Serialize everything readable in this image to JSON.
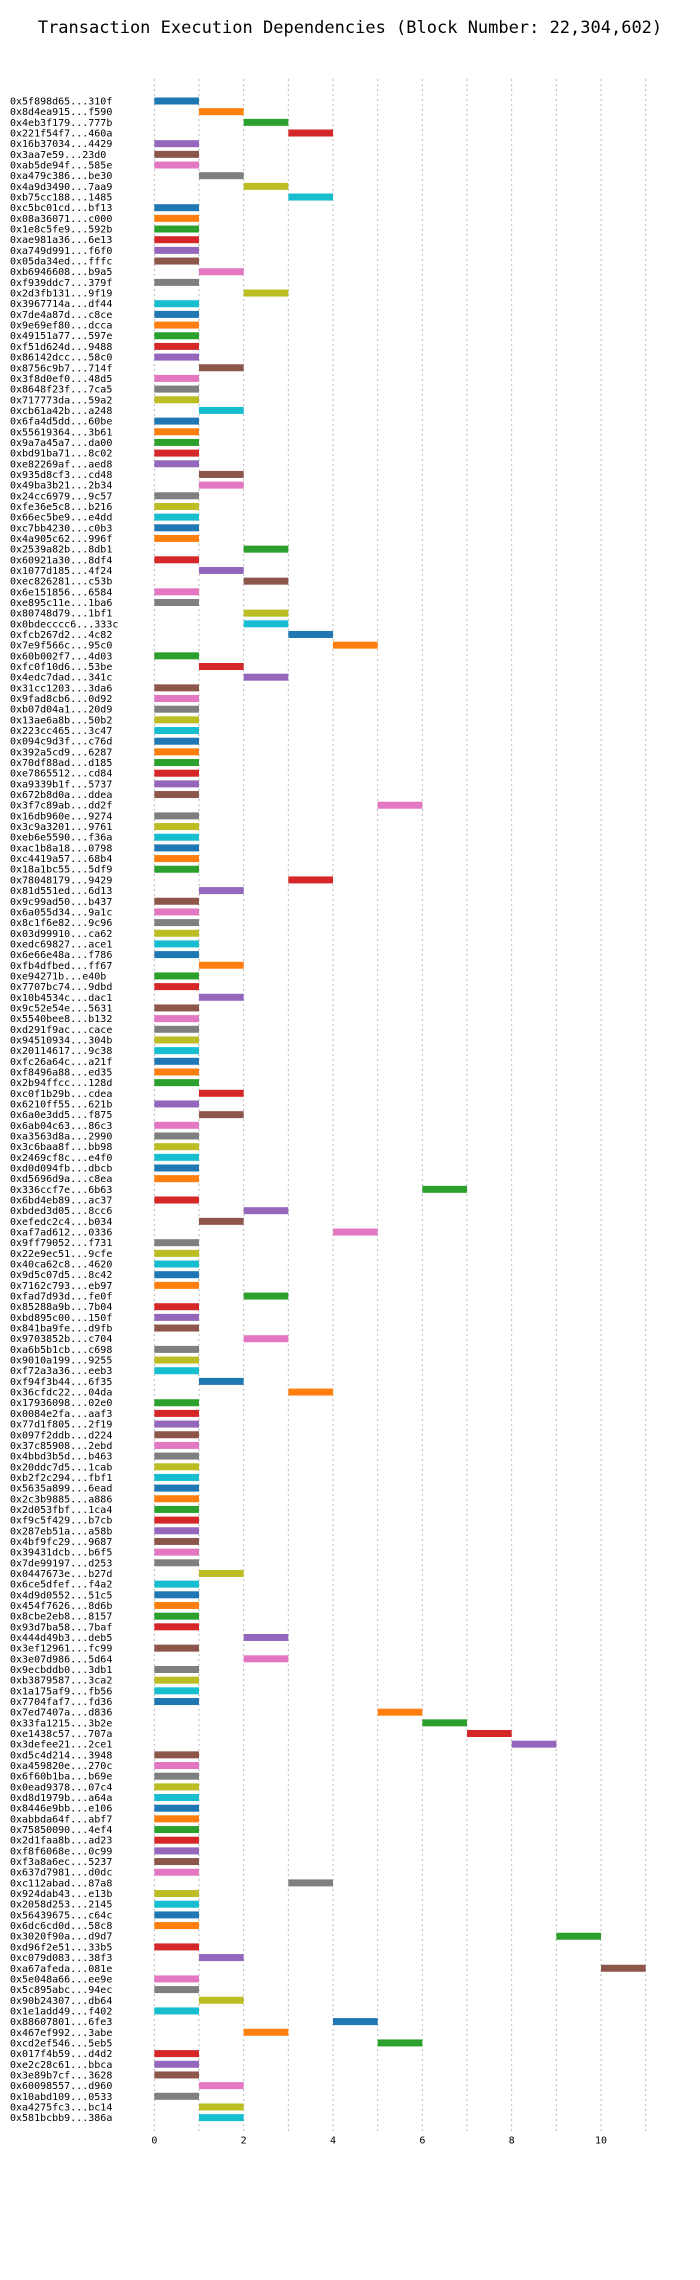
{
  "chart_data": {
    "type": "bar",
    "orientation": "horizontal",
    "title": "Transaction Execution Dependencies (Block Number: 22,304,602)",
    "xlabel": "",
    "ylabel": "",
    "xlim": [
      -0.5,
      11.5
    ],
    "xticks": [
      0,
      2,
      4,
      6,
      8,
      10
    ],
    "grid": true,
    "legend": "none",
    "bar_width": 1,
    "palette": [
      "#1f77b4",
      "#ff7f0e",
      "#2ca02c",
      "#d62728",
      "#9467bd",
      "#8c564b",
      "#e377c2",
      "#7f7f7f",
      "#bcbd22",
      "#17becf"
    ],
    "transactions": [
      {
        "label": "0x5f898d65...310f",
        "start": 0
      },
      {
        "label": "0x8d4ea915...f590",
        "start": 1
      },
      {
        "label": "0x4eb3f179...777b",
        "start": 2
      },
      {
        "label": "0x221f54f7...460a",
        "start": 3
      },
      {
        "label": "0x16b37034...4429",
        "start": 0
      },
      {
        "label": "0x3aa7e59...23d0",
        "start": 0
      },
      {
        "label": "0xab5de94f...585e",
        "start": 0
      },
      {
        "label": "0xa479c386...be30",
        "start": 1
      },
      {
        "label": "0x4a9d3490...7aa9",
        "start": 2
      },
      {
        "label": "0xb75cc188...1485",
        "start": 3
      },
      {
        "label": "0xc5bc01cd...bf13",
        "start": 0
      },
      {
        "label": "0x08a36071...c000",
        "start": 0
      },
      {
        "label": "0x1e8c5fe9...592b",
        "start": 0
      },
      {
        "label": "0xae981a36...6e13",
        "start": 0
      },
      {
        "label": "0xa749d991...f6f0",
        "start": 0
      },
      {
        "label": "0x05da34ed...fffc",
        "start": 0
      },
      {
        "label": "0xb6946608...b9a5",
        "start": 1
      },
      {
        "label": "0xf939ddc7...379f",
        "start": 0
      },
      {
        "label": "0x2d3fb131...9f19",
        "start": 2
      },
      {
        "label": "0x3967714a...df44",
        "start": 0
      },
      {
        "label": "0x7de4a87d...c8ce",
        "start": 0
      },
      {
        "label": "0x9e69ef80...dcca",
        "start": 0
      },
      {
        "label": "0x49151a77...597e",
        "start": 0
      },
      {
        "label": "0xf51d624d...9488",
        "start": 0
      },
      {
        "label": "0x86142dcc...58c0",
        "start": 0
      },
      {
        "label": "0x8756c9b7...714f",
        "start": 1
      },
      {
        "label": "0x3f8d0ef0...48d5",
        "start": 0
      },
      {
        "label": "0x8648f23f...7ca5",
        "start": 0
      },
      {
        "label": "0x717773da...59a2",
        "start": 0
      },
      {
        "label": "0xcb61a42b...a248",
        "start": 1
      },
      {
        "label": "0x6fa4d5dd...60be",
        "start": 0
      },
      {
        "label": "0x55619364...3b61",
        "start": 0
      },
      {
        "label": "0x9a7a45a7...da00",
        "start": 0
      },
      {
        "label": "0xbd91ba71...8c02",
        "start": 0
      },
      {
        "label": "0xe82269af...aed8",
        "start": 0
      },
      {
        "label": "0x935d8cf3...cd48",
        "start": 1
      },
      {
        "label": "0x49ba3b21...2b34",
        "start": 1
      },
      {
        "label": "0x24cc6979...9c57",
        "start": 0
      },
      {
        "label": "0xfe36e5c8...b216",
        "start": 0
      },
      {
        "label": "0x66ec5be9...e4dd",
        "start": 0
      },
      {
        "label": "0xc7bb4230...c0b3",
        "start": 0
      },
      {
        "label": "0x4a905c62...996f",
        "start": 0
      },
      {
        "label": "0x2539a82b...8db1",
        "start": 2
      },
      {
        "label": "0x60921a30...8df4",
        "start": 0
      },
      {
        "label": "0x1077d185...4f24",
        "start": 1
      },
      {
        "label": "0xec826281...c53b",
        "start": 2
      },
      {
        "label": "0x6e151856...6584",
        "start": 0
      },
      {
        "label": "0xe895c11e...1ba6",
        "start": 0
      },
      {
        "label": "0x80748d79...1bf1",
        "start": 2
      },
      {
        "label": "0x0bdecccc6...333c",
        "start": 2
      },
      {
        "label": "0xfcb267d2...4c82",
        "start": 3
      },
      {
        "label": "0x7e9f566c...95c0",
        "start": 4
      },
      {
        "label": "0x60b002f7...4d03",
        "start": 0
      },
      {
        "label": "0xfc0f10d6...53be",
        "start": 1
      },
      {
        "label": "0x4edc7dad...341c",
        "start": 2
      },
      {
        "label": "0x31cc1203...3da6",
        "start": 0
      },
      {
        "label": "0x9fad8cb6...0d92",
        "start": 0
      },
      {
        "label": "0xb07d04a1...20d9",
        "start": 0
      },
      {
        "label": "0x13ae6a8b...50b2",
        "start": 0
      },
      {
        "label": "0x223cc465...3c47",
        "start": 0
      },
      {
        "label": "0x094c9d3f...c76d",
        "start": 0
      },
      {
        "label": "0x392a5cd9...6287",
        "start": 0
      },
      {
        "label": "0x70df88ad...d185",
        "start": 0
      },
      {
        "label": "0xe7865512...cd84",
        "start": 0
      },
      {
        "label": "0xa9339b1f...5737",
        "start": 0
      },
      {
        "label": "0x672b8d0a...ddea",
        "start": 0
      },
      {
        "label": "0x3f7c89ab...dd2f",
        "start": 5
      },
      {
        "label": "0x16db960e...9274",
        "start": 0
      },
      {
        "label": "0x3c9a3201...9761",
        "start": 0
      },
      {
        "label": "0xeb6e5590...f36a",
        "start": 0
      },
      {
        "label": "0xac1b8a18...0798",
        "start": 0
      },
      {
        "label": "0xc4419a57...68b4",
        "start": 0
      },
      {
        "label": "0x18a1bc55...5df9",
        "start": 0
      },
      {
        "label": "0x78048179...9429",
        "start": 3
      },
      {
        "label": "0x81d551ed...6d13",
        "start": 1
      },
      {
        "label": "0x9c99ad50...b437",
        "start": 0
      },
      {
        "label": "0x6a055d34...9a1c",
        "start": 0
      },
      {
        "label": "0x8c1f6e82...9c96",
        "start": 0
      },
      {
        "label": "0x03d99910...ca62",
        "start": 0
      },
      {
        "label": "0xedc69827...ace1",
        "start": 0
      },
      {
        "label": "0x6e66e48a...f786",
        "start": 0
      },
      {
        "label": "0xfb4dfbed...ff67",
        "start": 1
      },
      {
        "label": "0xe94271b...e40b",
        "start": 0
      },
      {
        "label": "0x7707bc74...9dbd",
        "start": 0
      },
      {
        "label": "0x10b4534c...dac1",
        "start": 1
      },
      {
        "label": "0x9c52e54e...5631",
        "start": 0
      },
      {
        "label": "0x5540bee8...b132",
        "start": 0
      },
      {
        "label": "0xd291f9ac...cace",
        "start": 0
      },
      {
        "label": "0x94510934...304b",
        "start": 0
      },
      {
        "label": "0x20114617...9c38",
        "start": 0
      },
      {
        "label": "0xfc26a64c...a21f",
        "start": 0
      },
      {
        "label": "0xf8496a88...ed35",
        "start": 0
      },
      {
        "label": "0x2b94ffcc...128d",
        "start": 0
      },
      {
        "label": "0xc0f1b29b...cdea",
        "start": 1
      },
      {
        "label": "0x6210ff55...621b",
        "start": 0
      },
      {
        "label": "0x6a0e3dd5...f875",
        "start": 1
      },
      {
        "label": "0x6ab04c63...86c3",
        "start": 0
      },
      {
        "label": "0xa3563d8a...2990",
        "start": 0
      },
      {
        "label": "0x3c6baa8f...bb98",
        "start": 0
      },
      {
        "label": "0x2469cf8c...e4f0",
        "start": 0
      },
      {
        "label": "0xd0d094fb...dbcb",
        "start": 0
      },
      {
        "label": "0xd5696d9a...c8ea",
        "start": 0
      },
      {
        "label": "0x336ccf7e...6b63",
        "start": 6
      },
      {
        "label": "0x6bd4eb89...ac37",
        "start": 0
      },
      {
        "label": "0xbded3d05...8cc6",
        "start": 2
      },
      {
        "label": "0xefedc2c4...b034",
        "start": 1
      },
      {
        "label": "0xaf7ad612...0336",
        "start": 4
      },
      {
        "label": "0x9ff79052...f731",
        "start": 0
      },
      {
        "label": "0x22e9ec51...9cfe",
        "start": 0
      },
      {
        "label": "0x40ca62c8...4620",
        "start": 0
      },
      {
        "label": "0x9d5c07d5...8c42",
        "start": 0
      },
      {
        "label": "0x7162c793...eb97",
        "start": 0
      },
      {
        "label": "0xfad7d93d...fe0f",
        "start": 2
      },
      {
        "label": "0x85288a9b...7b04",
        "start": 0
      },
      {
        "label": "0xbd895c00...150f",
        "start": 0
      },
      {
        "label": "0x841ba9fe...d9fb",
        "start": 0
      },
      {
        "label": "0x9703852b...c704",
        "start": 2
      },
      {
        "label": "0xa6b5b1cb...c698",
        "start": 0
      },
      {
        "label": "0x9010a199...9255",
        "start": 0
      },
      {
        "label": "0xf72a3a36...eeb3",
        "start": 0
      },
      {
        "label": "0xf94f3b44...6f35",
        "start": 1
      },
      {
        "label": "0x36cfdc22...04da",
        "start": 3
      },
      {
        "label": "0x17936098...02e0",
        "start": 0
      },
      {
        "label": "0x0084e2fa...aaf3",
        "start": 0
      },
      {
        "label": "0x77d1f805...2f19",
        "start": 0
      },
      {
        "label": "0x097f2ddb...d224",
        "start": 0
      },
      {
        "label": "0x37c85908...2ebd",
        "start": 0
      },
      {
        "label": "0x4bbd3b5d...b463",
        "start": 0
      },
      {
        "label": "0x20ddc7d5...1cab",
        "start": 0
      },
      {
        "label": "0xb2f2c294...fbf1",
        "start": 0
      },
      {
        "label": "0x5635a899...6ead",
        "start": 0
      },
      {
        "label": "0x2c3b9885...a886",
        "start": 0
      },
      {
        "label": "0x2d053fbf...1ca4",
        "start": 0
      },
      {
        "label": "0xf9c5f429...b7cb",
        "start": 0
      },
      {
        "label": "0x287eb51a...a58b",
        "start": 0
      },
      {
        "label": "0x4bf9fc29...9687",
        "start": 0
      },
      {
        "label": "0x39431dcb...b6f5",
        "start": 0
      },
      {
        "label": "0x7de99197...d253",
        "start": 0
      },
      {
        "label": "0x0447673e...b27d",
        "start": 1
      },
      {
        "label": "0x6ce5dfef...f4a2",
        "start": 0
      },
      {
        "label": "0x4d9d0552...51c5",
        "start": 0
      },
      {
        "label": "0x454f7626...8d6b",
        "start": 0
      },
      {
        "label": "0x8cbe2eb8...8157",
        "start": 0
      },
      {
        "label": "0x93d7ba58...7baf",
        "start": 0
      },
      {
        "label": "0x444d49b3...deb5",
        "start": 2
      },
      {
        "label": "0x3ef12961...fc99",
        "start": 0
      },
      {
        "label": "0x3e07d986...5d64",
        "start": 2
      },
      {
        "label": "0x9ecbddb0...3db1",
        "start": 0
      },
      {
        "label": "0xb3879587...3ca2",
        "start": 0
      },
      {
        "label": "0x1a175af9...fb56",
        "start": 0
      },
      {
        "label": "0x7704faf7...fd36",
        "start": 0
      },
      {
        "label": "0x7ed7407a...d836",
        "start": 5
      },
      {
        "label": "0x33fa1215...3b2e",
        "start": 6
      },
      {
        "label": "0xe1438c57...707a",
        "start": 7
      },
      {
        "label": "0x3defee21...2ce1",
        "start": 8
      },
      {
        "label": "0xd5c4d214...3948",
        "start": 0
      },
      {
        "label": "0xa459820e...270c",
        "start": 0
      },
      {
        "label": "0x6f60b1ba...b69e",
        "start": 0
      },
      {
        "label": "0x0ead9378...07c4",
        "start": 0
      },
      {
        "label": "0xd8d1979b...a64a",
        "start": 0
      },
      {
        "label": "0x8446e9bb...e106",
        "start": 0
      },
      {
        "label": "0xabbda64f...abf7",
        "start": 0
      },
      {
        "label": "0x75850090...4ef4",
        "start": 0
      },
      {
        "label": "0x2d1faa8b...ad23",
        "start": 0
      },
      {
        "label": "0xf8f6068e...0c99",
        "start": 0
      },
      {
        "label": "0xf3a8a6ec...5237",
        "start": 0
      },
      {
        "label": "0x637d7981...d0dc",
        "start": 0
      },
      {
        "label": "0xc112abad...87a8",
        "start": 3
      },
      {
        "label": "0x924dab43...e13b",
        "start": 0
      },
      {
        "label": "0x2058d253...2145",
        "start": 0
      },
      {
        "label": "0x56439675...c64c",
        "start": 0
      },
      {
        "label": "0x6dc6cd0d...58c8",
        "start": 0
      },
      {
        "label": "0x3020f90a...d9d7",
        "start": 9
      },
      {
        "label": "0xd96f2e51...33b5",
        "start": 0
      },
      {
        "label": "0xc079d083...38f3",
        "start": 1
      },
      {
        "label": "0xa67afeda...081e",
        "start": 10
      },
      {
        "label": "0x5e048a66...ee9e",
        "start": 0
      },
      {
        "label": "0x5c895abc...94ec",
        "start": 0
      },
      {
        "label": "0x90b24307...db64",
        "start": 1
      },
      {
        "label": "0x1e1add49...f402",
        "start": 0
      },
      {
        "label": "0x88607801...6fe3",
        "start": 4
      },
      {
        "label": "0x467ef992...3abe",
        "start": 2
      },
      {
        "label": "0xcd2ef546...5eb5",
        "start": 5
      },
      {
        "label": "0x017f4b59...d4d2",
        "start": 0
      },
      {
        "label": "0xe2c28c61...bbca",
        "start": 0
      },
      {
        "label": "0x3e89b7cf...3628",
        "start": 0
      },
      {
        "label": "0x60098557...d960",
        "start": 1
      },
      {
        "label": "0x10abd109...0533",
        "start": 0
      },
      {
        "label": "0xa4275fc3...bc14",
        "start": 1
      },
      {
        "label": "0x581bcbb9...386a",
        "start": 1
      }
    ]
  }
}
